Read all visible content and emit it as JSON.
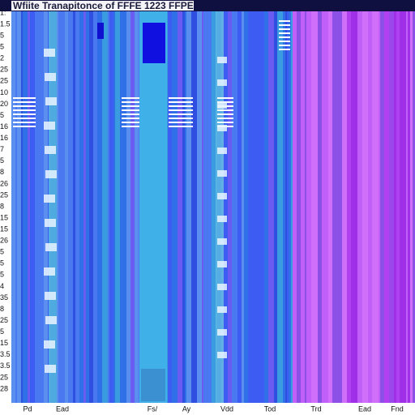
{
  "header": {
    "title": "Wfiite Tranapitonce of FFFE 1223 FFPE"
  },
  "left_labels": [
    "1:",
    "1.5",
    "5",
    "5",
    "2",
    "25",
    "25",
    "10",
    "20",
    "5",
    "16",
    "16",
    "7",
    "5",
    "8",
    "26",
    "25",
    "8",
    "15",
    "15",
    "26",
    "5",
    "5",
    "5",
    "4",
    "35",
    "8",
    "25",
    "5",
    "15",
    "3.5",
    "3.5",
    "25",
    "28"
  ],
  "bottom_labels": [
    "Pd",
    "Ead",
    "Fs/",
    "Ay",
    "Vdd",
    "Tod",
    "Trd",
    "Ead",
    "Fnd"
  ]
}
